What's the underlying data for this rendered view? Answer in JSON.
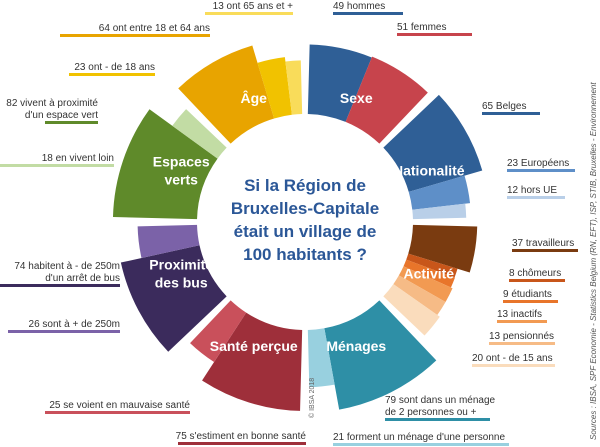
{
  "question_lines": [
    "Si la Région de",
    "Bruxelles-Capitale",
    "était un village de",
    "100 habitants ?"
  ],
  "copyright": "© IBSA 2018",
  "sources": "Sources : IBSA, SPF Economie - Statistics Belgium (RN, EFT), ISP, STIB, Bruxelles - Environnement",
  "chart_data": {
    "type": "pie",
    "segments": [
      {
        "category": "Sexe",
        "category_lines": [
          "Sexe"
        ],
        "items": [
          {
            "value": 49,
            "label": "49 hommes",
            "color": "#2f5f96"
          },
          {
            "value": 51,
            "label": "51 femmes",
            "color": "#c7444c"
          }
        ]
      },
      {
        "category": "Nationalité",
        "category_lines": [
          "Nationalité"
        ],
        "items": [
          {
            "value": 65,
            "label": "65 Belges",
            "color": "#2f5f96"
          },
          {
            "value": 23,
            "label": "23 Européens",
            "color": "#5e8fc8"
          },
          {
            "value": 12,
            "label": "12 hors UE",
            "color": "#b9cfe8"
          }
        ]
      },
      {
        "category": "Activité",
        "category_lines": [
          "Activité"
        ],
        "items": [
          {
            "value": 37,
            "label": "37 travailleurs",
            "color": "#7a3b10"
          },
          {
            "value": 8,
            "label": "8 chômeurs",
            "color": "#c8561a"
          },
          {
            "value": 9,
            "label": "9 étudiants",
            "color": "#e8752a"
          },
          {
            "value": 13,
            "label": "13 inactifs",
            "color": "#f29a52"
          },
          {
            "value": 13,
            "label": "13 pensionnés",
            "color": "#f6bb86"
          },
          {
            "value": 20,
            "label": "20 ont - de 15 ans",
            "color": "#fadcbc"
          }
        ]
      },
      {
        "category": "Ménages",
        "category_lines": [
          "Ménages"
        ],
        "items": [
          {
            "value": 79,
            "label_lines": [
              "79 sont dans un ménage",
              "de 2 personnes ou +"
            ],
            "color": "#2e8fa6"
          },
          {
            "value": 21,
            "label": "21 forment un ménage d'une personne",
            "color": "#98d0df"
          }
        ]
      },
      {
        "category": "Santé perçue",
        "category_lines": [
          "Santé perçue"
        ],
        "items": [
          {
            "value": 75,
            "label": "75 s'estiment en bonne santé",
            "color": "#9e2f3a"
          },
          {
            "value": 25,
            "label": "25 se voient en mauvaise santé",
            "color": "#c9505b"
          }
        ]
      },
      {
        "category": "Proximité des bus",
        "category_lines": [
          "Proximité",
          "des bus"
        ],
        "items": [
          {
            "value": 74,
            "label_lines": [
              "74 habitent à - de 250m",
              "d'un arrêt de bus"
            ],
            "color": "#3b2b5c"
          },
          {
            "value": 26,
            "label": "26 sont à + de 250m",
            "color": "#7b62a8"
          }
        ]
      },
      {
        "category": "Espaces verts",
        "category_lines": [
          "Espaces",
          "verts"
        ],
        "items": [
          {
            "value": 82,
            "label_lines": [
              "82 vivent à proximité",
              "d'un espace vert"
            ],
            "color": "#5f8a2a"
          },
          {
            "value": 18,
            "label": "18 en vivent loin",
            "color": "#c2dca4"
          }
        ]
      },
      {
        "category": "Âge",
        "category_lines": [
          "Âge"
        ],
        "items": [
          {
            "value": 64,
            "label": "64 ont entre 18 et 64 ans",
            "color": "#e8a400"
          },
          {
            "value": 23,
            "label": "23 ont - de 18 ans",
            "color": "#f1c200"
          },
          {
            "value": 13,
            "label": "13 ont 65 ans et +",
            "color": "#f9dc5a"
          }
        ]
      }
    ]
  }
}
